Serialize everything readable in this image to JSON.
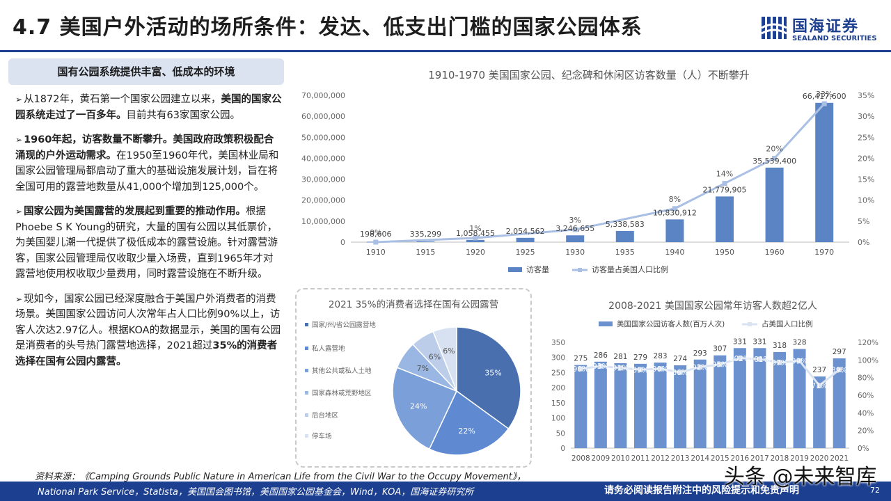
{
  "page": {
    "title": "4.7 美国户外活动的场所条件：发达、低支出门槛的国家公园体系",
    "logo_cn": "国海证券",
    "logo_en": "SEALAND SECURITIES",
    "brand_color": "#1d3f8f",
    "sidebox_title": "国有公园系统提供丰富、低成本的环境",
    "source_line1": "资料来源：《Camping Grounds Public Nature in American Life from the Civil War to the Occupy Movement》，",
    "source_line2": "National Park Service，Statista，美国国会图书馆，美国国家公园基金会，Wind，KOA，国海证券研究所",
    "disclaimer": "请务必阅读报告附注中的风险提示和免责声明",
    "page_number": "72",
    "watermark": "头条 @未来智库"
  },
  "bullets": [
    [
      {
        "t": "从1872年，黄石第一个国家公园建立以来，",
        "b": false
      },
      {
        "t": "美国的国家公园系统走过了一百多年。",
        "b": true
      },
      {
        "t": "目前共有63家国家公园。",
        "b": false
      }
    ],
    [
      {
        "t": "1960年起，访客数量不断攀升。美国政府政策积极配合涌现的户外运动需求。",
        "b": true
      },
      {
        "t": "在1950至1960年代，美国林业局和国家公园管理局都启动了重大的基础设施发展计划，旨在将全国可用的露营地数量从41,000个增加到125,000个。",
        "b": false
      }
    ],
    [
      {
        "t": "国家公园为美国露营的发展起到重要的推动作用。",
        "b": true
      },
      {
        "t": "根据Phoebe S K Young的研究，大量的国有公园以其低票价，为美国婴儿潮一代提供了极低成本的露营设施。针对露营游客，国家公园管理局仅收取少量入场费，直到1965年才对露营地使用权收取少量费用，同时露营设施在不断升级。",
        "b": false
      }
    ],
    [
      {
        "t": "现如今，国家公园已经深度融合于美国户外消费者的消费场景。美国国家公园访问人次常年占人口比例90%以上，访客人次达2.97亿人。根据KOA的数据显示，美国的国有公园是消费者的头号热门露营地选择，2021超过",
        "b": false
      },
      {
        "t": "35%的消费者选择在国有公园内露营。",
        "b": true
      }
    ]
  ],
  "chart_data": [
    {
      "type": "bar",
      "title": "1910-1970 美国国家公园、纪念碑和休闲区访客数量（人）不断攀升",
      "categories": [
        "1910",
        "1915",
        "1920",
        "1925",
        "1930",
        "1935",
        "1940",
        "1950",
        "1960",
        "1970"
      ],
      "series": [
        {
          "name": "访客量",
          "type": "bar",
          "axis": "left",
          "color": "#5a84c4",
          "values": [
            198606,
            335299,
            1058455,
            2054562,
            3246655,
            5338583,
            10830912,
            21779905,
            35539400,
            66417600
          ],
          "labels": [
            "198,606",
            "335,299",
            "1,058,455",
            "2,054,562",
            "3,246,655",
            "5,338,583",
            "10,830,912",
            "21,779,905",
            "35,539,400",
            "66,417,600"
          ]
        },
        {
          "name": "访客量占美国人口比例",
          "type": "line",
          "axis": "right",
          "color": "#a9bfe3",
          "values": [
            0,
            null,
            1,
            null,
            3,
            null,
            8,
            14,
            20,
            33
          ],
          "labels": [
            "0%",
            "",
            "1%",
            "",
            "3%",
            "",
            "8%",
            "14%",
            "20%",
            "33%"
          ]
        }
      ],
      "y_left": {
        "min": 0,
        "max": 70000000,
        "ticks": [
          "0",
          "10,000,000",
          "20,000,000",
          "30,000,000",
          "40,000,000",
          "50,000,000",
          "60,000,000",
          "70,000,000"
        ]
      },
      "y_right": {
        "min": 0,
        "max": 35,
        "ticks": [
          "0%",
          "5%",
          "10%",
          "15%",
          "20%",
          "25%",
          "30%",
          "35%"
        ]
      },
      "legend": "bottom",
      "grid": false
    },
    {
      "type": "pie",
      "title": "2021 35%的消费者选择在国有公园露营",
      "labels": [
        "国家/州/省公园露营地",
        "私人露营地",
        "其他公共或私人土地",
        "国家森林或荒野地区",
        "后台地区",
        "停车场"
      ],
      "values": [
        35,
        22,
        24,
        7,
        6,
        6
      ],
      "value_labels": [
        "35%",
        "22%",
        "24%",
        "7%",
        "6%",
        "6%"
      ],
      "colors": [
        "#4a6fae",
        "#5f8ad1",
        "#7a9fd9",
        "#9ab6e3",
        "#bccde9",
        "#d7e1f1"
      ],
      "legend": "left"
    },
    {
      "type": "bar",
      "title": "2008-2021 美国国家公园常年访客人数超2亿人",
      "categories": [
        "2008",
        "2009",
        "2010",
        "2011",
        "2012",
        "2013",
        "2014",
        "2015",
        "2016",
        "2017",
        "2018",
        "2019",
        "2020",
        "2021"
      ],
      "series": [
        {
          "name": "美国国家公园访客人数(百万人次)",
          "type": "bar",
          "axis": "left",
          "color": "#6b92cf",
          "values": [
            275,
            286,
            281,
            279,
            283,
            274,
            293,
            307,
            331,
            331,
            318,
            328,
            237,
            297
          ],
          "labels": [
            "275",
            "286",
            "281",
            "279",
            "283",
            "274",
            "293",
            "307",
            "331",
            "331",
            "318",
            "328",
            "237",
            "297"
          ]
        },
        {
          "name": "占美国人口比例",
          "type": "line",
          "axis": "right",
          "color": "#d9e3f1",
          "values": [
            90,
            93,
            91,
            89,
            90,
            86,
            92,
            95,
            102,
            101,
            97,
            99,
            71,
            89
          ],
          "labels": [
            "90%",
            "93%",
            "91%",
            "89%",
            "90%",
            "86%",
            "92%",
            "95%",
            "102%",
            "101%",
            "97%",
            "99%",
            "71%",
            "89%"
          ]
        }
      ],
      "y_left": {
        "min": 0,
        "max": 350,
        "ticks": [
          "0",
          "50",
          "100",
          "150",
          "200",
          "250",
          "300",
          "350"
        ]
      },
      "y_right": {
        "min": 0,
        "max": 120,
        "ticks": [
          "0%",
          "20%",
          "40%",
          "60%",
          "80%",
          "100%",
          "120%"
        ]
      },
      "legend": "top",
      "grid": false
    }
  ]
}
